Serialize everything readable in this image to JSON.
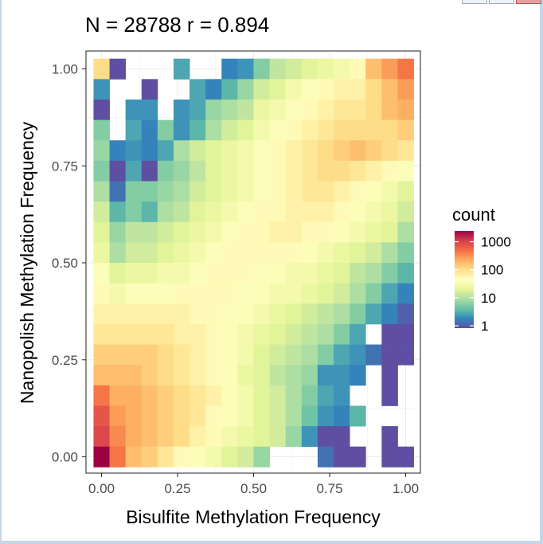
{
  "chart_data": {
    "type": "heatmap",
    "title": "N = 28788 r = 0.894",
    "xlabel": "Bisulfite Methylation Frequency",
    "ylabel": "Nanopolish Methylation Frequency",
    "xlim": [
      0,
      1
    ],
    "ylim": [
      0,
      1
    ],
    "x_ticks": [
      "0.00",
      "0.25",
      "0.50",
      "0.75",
      "1.00"
    ],
    "y_ticks": [
      "0.00",
      "0.25",
      "0.50",
      "0.75",
      "1.00"
    ],
    "bins": 20,
    "legend": {
      "title": "count",
      "labels": [
        "1000",
        "100",
        "10",
        "1"
      ],
      "placement": "right",
      "scale": "log10"
    },
    "palette": [
      "#5e4fa2",
      "#3288bd",
      "#66c2a5",
      "#abdda4",
      "#e6f598",
      "#ffffbf",
      "#fee08b",
      "#fdae61",
      "#f46d43",
      "#d53e4f",
      "#9e0142"
    ],
    "log10_counts_by_row_from_top": [
      [
        2,
        0,
        -1,
        -1,
        -1,
        0.5,
        -1,
        -1,
        0.3,
        0.4,
        0.8,
        1.1,
        1.2,
        1.3,
        1.4,
        1.5,
        1.7,
        2.2,
        2.4,
        2.6
      ],
      [
        0.4,
        -1,
        -1,
        0,
        -1,
        -1,
        0.5,
        0.3,
        0.6,
        0.9,
        1.2,
        1.3,
        1.5,
        1.6,
        1.7,
        1.8,
        1.8,
        2.0,
        2.2,
        2.4
      ],
      [
        0,
        -1,
        0.4,
        0.4,
        -1,
        0.4,
        0.5,
        0.9,
        1.0,
        1.1,
        1.4,
        1.5,
        1.6,
        1.7,
        1.8,
        1.9,
        1.9,
        2.0,
        2.2,
        2.3
      ],
      [
        0.8,
        -1,
        0.5,
        0.3,
        0.8,
        0.4,
        0.6,
        1.0,
        1.2,
        1.3,
        1.5,
        1.6,
        1.7,
        1.8,
        1.9,
        2.0,
        2.0,
        2.0,
        2.0,
        2.1
      ],
      [
        0.9,
        0.3,
        0.4,
        0.3,
        0.5,
        1.0,
        1.2,
        1.3,
        1.4,
        1.5,
        1.6,
        1.7,
        1.8,
        1.9,
        2.0,
        2.1,
        2.2,
        2.1,
        2.0,
        1.9
      ],
      [
        0.8,
        0,
        0.5,
        0,
        0.8,
        0.9,
        1.1,
        1.3,
        1.4,
        1.5,
        1.6,
        1.7,
        1.8,
        1.9,
        2.0,
        2.0,
        1.9,
        1.8,
        1.7,
        1.6
      ],
      [
        1.0,
        0.2,
        0.8,
        0.8,
        0.9,
        1.0,
        1.2,
        1.3,
        1.4,
        1.5,
        1.6,
        1.7,
        1.8,
        1.9,
        1.9,
        1.8,
        1.7,
        1.6,
        1.5,
        1.3
      ],
      [
        1.2,
        0.6,
        0.8,
        0.6,
        1.0,
        1.1,
        1.3,
        1.4,
        1.5,
        1.6,
        1.7,
        1.7,
        1.8,
        1.8,
        1.8,
        1.7,
        1.6,
        1.5,
        1.4,
        1.2
      ],
      [
        1.3,
        0.9,
        1.1,
        1.1,
        1.2,
        1.3,
        1.4,
        1.5,
        1.6,
        1.7,
        1.7,
        1.8,
        1.8,
        1.7,
        1.7,
        1.6,
        1.5,
        1.4,
        1.3,
        1.0
      ],
      [
        1.4,
        1.0,
        1.2,
        1.2,
        1.3,
        1.4,
        1.5,
        1.6,
        1.7,
        1.7,
        1.7,
        1.7,
        1.7,
        1.6,
        1.5,
        1.4,
        1.3,
        1.2,
        1.0,
        0.8
      ],
      [
        1.6,
        1.3,
        1.4,
        1.4,
        1.5,
        1.5,
        1.6,
        1.7,
        1.7,
        1.7,
        1.6,
        1.6,
        1.5,
        1.5,
        1.4,
        1.3,
        1.1,
        1.0,
        0.8,
        0.6
      ],
      [
        1.7,
        1.5,
        1.6,
        1.6,
        1.6,
        1.7,
        1.7,
        1.7,
        1.7,
        1.6,
        1.6,
        1.5,
        1.5,
        1.4,
        1.3,
        1.2,
        1.0,
        0.8,
        0.5,
        0.3
      ],
      [
        1.8,
        1.8,
        1.8,
        1.8,
        1.8,
        1.8,
        1.7,
        1.7,
        1.6,
        1.6,
        1.5,
        1.4,
        1.3,
        1.2,
        1.1,
        1.0,
        0.8,
        0.5,
        0.3,
        0.1
      ],
      [
        1.9,
        1.9,
        1.9,
        1.9,
        1.9,
        1.8,
        1.8,
        1.7,
        1.6,
        1.5,
        1.4,
        1.3,
        1.2,
        1.1,
        1.0,
        0.8,
        0.5,
        -1,
        0,
        0
      ],
      [
        2.1,
        2.1,
        2.1,
        2.1,
        2.0,
        1.9,
        1.8,
        1.7,
        1.6,
        1.5,
        1.3,
        1.2,
        1.1,
        1.0,
        0.8,
        0.5,
        0.4,
        0.2,
        0,
        0
      ],
      [
        2.2,
        2.2,
        2.2,
        2.1,
        2.0,
        1.9,
        1.8,
        1.7,
        1.6,
        1.4,
        1.3,
        1.1,
        1.0,
        0.9,
        0.4,
        0.4,
        0.3,
        -1,
        0,
        -1
      ],
      [
        2.6,
        2.3,
        2.3,
        2.2,
        2.1,
        2.0,
        1.9,
        1.8,
        1.6,
        1.5,
        1.3,
        1.2,
        1.0,
        0.8,
        0.5,
        0.4,
        -1,
        -1,
        0,
        -1
      ],
      [
        2.8,
        2.4,
        2.3,
        2.2,
        2.1,
        2.0,
        1.9,
        1.7,
        1.6,
        1.5,
        1.3,
        1.2,
        1.0,
        0.7,
        0.4,
        0.3,
        0.6,
        -1,
        -1,
        -1
      ],
      [
        2.9,
        2.5,
        2.3,
        2.2,
        2.1,
        2.0,
        1.8,
        1.7,
        1.5,
        1.4,
        1.3,
        1.2,
        0.9,
        0.4,
        0,
        0,
        -1,
        -1,
        0,
        -1
      ],
      [
        3.3,
        2.6,
        2.2,
        2.1,
        1.9,
        1.7,
        1.6,
        1.5,
        1.3,
        1.2,
        0.9,
        -1,
        -1,
        -1,
        0.2,
        0,
        0,
        -1,
        0,
        0
      ]
    ]
  }
}
